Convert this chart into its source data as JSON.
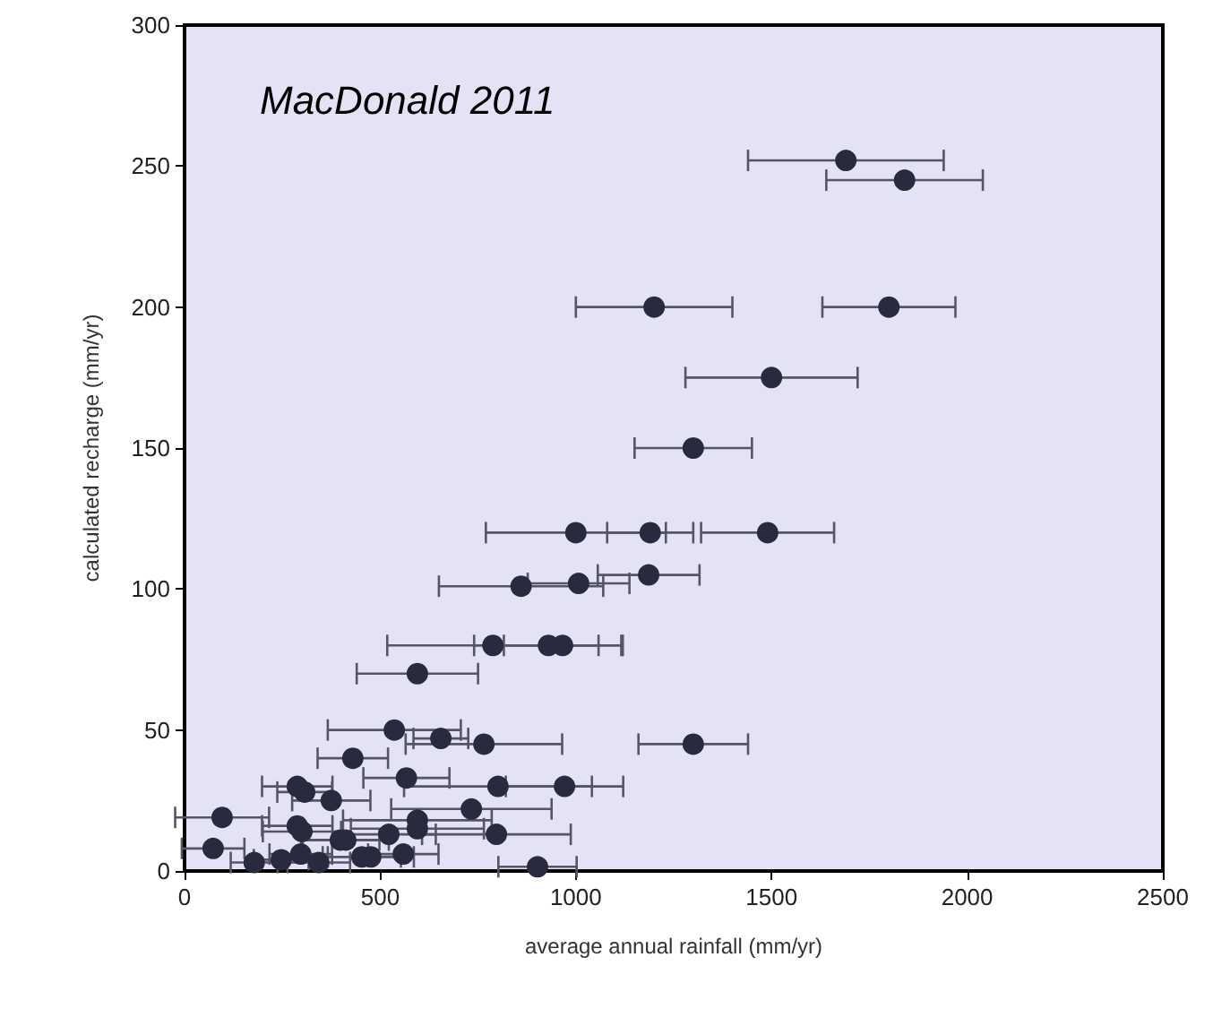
{
  "chart_data": {
    "type": "scatter",
    "xlabel": "average annual rainfall (mm/yr)",
    "ylabel": "calculated recharge (mm/yr)",
    "annotations": [
      "MacDonald 2011"
    ],
    "xlim": [
      0,
      2500
    ],
    "xticks": [
      0,
      500,
      1000,
      1500,
      2000,
      2500
    ],
    "ylim": [
      0,
      300
    ],
    "yticks": [
      0,
      50,
      100,
      150,
      200,
      250,
      300
    ],
    "grid": false,
    "marker": "circle",
    "series": [
      {
        "color": "#2a2a3e",
        "x": [
          1690,
          1840,
          1200,
          1800,
          1500,
          1300,
          1000,
          1190,
          1490,
          860,
          1007,
          1186,
          788,
          930,
          966,
          595,
          536,
          655,
          765,
          1300,
          430,
          567,
          801,
          971,
          288,
          307,
          375,
          733,
          96,
          288,
          595,
          595,
          300,
          797,
          522,
          412,
          398,
          73,
          559,
          297,
          178,
          247,
          343,
          453,
          476,
          902
        ],
        "values": [
          252,
          245,
          200,
          200,
          175,
          150,
          120,
          120,
          120,
          101,
          102,
          105,
          80,
          80,
          80,
          70,
          50,
          47,
          45,
          45,
          40,
          33,
          30,
          30,
          30,
          28,
          25,
          22,
          19,
          16,
          18,
          15,
          14,
          13,
          13,
          11,
          11,
          8,
          6,
          6,
          3,
          4,
          3,
          5,
          5,
          1.5
        ],
        "xerrors": [
          250,
          200,
          200,
          170,
          220,
          150,
          230,
          110,
          170,
          210,
          130,
          130,
          270,
          190,
          150,
          155,
          170,
          70,
          200,
          140,
          90,
          110,
          240,
          150,
          90,
          70,
          100,
          205,
          120,
          90,
          190,
          170,
          100,
          190,
          120,
          110,
          100,
          80,
          90,
          80,
          60,
          70,
          80,
          100,
          110,
          100
        ]
      }
    ]
  }
}
